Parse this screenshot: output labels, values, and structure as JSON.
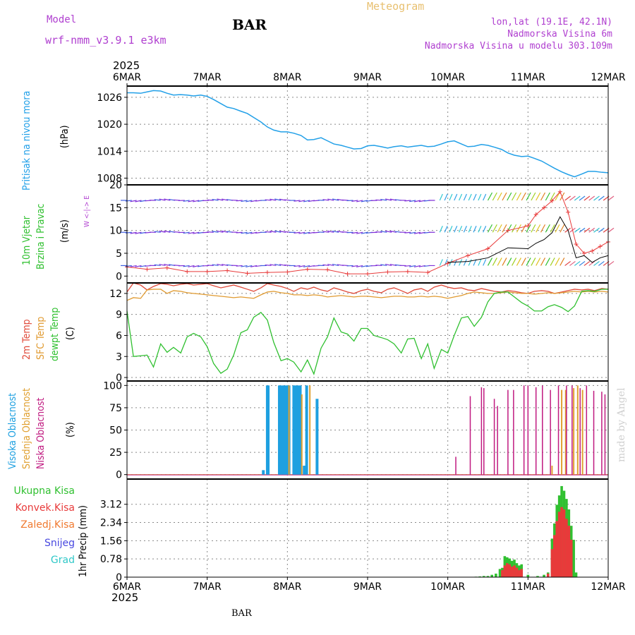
{
  "header": {
    "model_label": "Model",
    "model_name": "wrf-nmm_v3.9.1  e3km",
    "station": "BAR",
    "meteogram": "Meteogram",
    "lonlat": "lon,lat (19.1E, 42.1N)",
    "altitude": "Nadmorska Visina 6m",
    "model_altitude": "Nadmorska Visina u modelu 303.109m",
    "year": "2025",
    "footer_station": "BAR",
    "watermark": "made by Angel"
  },
  "colors": {
    "pressure": "#22a0e8",
    "wind_speed": "#000000",
    "gust": "#e83a3a",
    "temp2m": "#e04a3a",
    "sfc_temp": "#e09a30",
    "dewpt": "#30c030",
    "high_cloud": "#1ea0e0",
    "mid_cloud": "#e0a030",
    "low_cloud": "#c01a80",
    "total_precip": "#30c030",
    "conv_precip": "#e83a3a",
    "frz_precip": "#f07a30",
    "snow": "#4848e0",
    "hail": "#30c8c8",
    "header_purple": "#b040d0",
    "meteogram_gold": "#e8c070"
  },
  "chart_data": [
    {
      "type": "line",
      "panel": "pressure",
      "title": "Pritisak na nivou mora",
      "ylabel": "(hPa)",
      "xlim": [
        0,
        6
      ],
      "ylim": [
        1006.5,
        1028.5
      ],
      "yticks": [
        1008,
        1014,
        1020,
        1026
      ],
      "x": [
        0,
        0.08,
        0.17,
        0.25,
        0.33,
        0.42,
        0.5,
        0.58,
        0.67,
        0.75,
        0.83,
        0.92,
        1.0,
        1.08,
        1.17,
        1.25,
        1.33,
        1.42,
        1.5,
        1.58,
        1.67,
        1.75,
        1.83,
        1.92,
        2.0,
        2.08,
        2.17,
        2.25,
        2.33,
        2.42,
        2.5,
        2.58,
        2.67,
        2.75,
        2.83,
        2.92,
        3.0,
        3.08,
        3.17,
        3.25,
        3.33,
        3.42,
        3.5,
        3.58,
        3.67,
        3.75,
        3.83,
        3.92,
        4.0,
        4.08,
        4.17,
        4.25,
        4.33,
        4.42,
        4.5,
        4.58,
        4.67,
        4.75,
        4.83,
        4.92,
        5.0,
        5.08,
        5.17,
        5.25,
        5.33,
        5.42,
        5.5,
        5.58,
        5.67,
        5.75,
        5.83,
        5.92,
        6.0
      ],
      "series": [
        {
          "name": "Pritisak",
          "values": [
            1027,
            1027,
            1026.9,
            1027.2,
            1027.5,
            1027.4,
            1026.9,
            1026.5,
            1026.6,
            1026.5,
            1026.3,
            1026.5,
            1026.2,
            1025.5,
            1024.6,
            1023.8,
            1023.5,
            1022.9,
            1022.4,
            1021.5,
            1020.5,
            1019.4,
            1018.7,
            1018.3,
            1018.3,
            1018.0,
            1017.5,
            1016.5,
            1016.6,
            1017.0,
            1016.3,
            1015.6,
            1015.3,
            1014.9,
            1014.5,
            1014.6,
            1015.2,
            1015.3,
            1015.0,
            1014.7,
            1015.0,
            1015.2,
            1014.9,
            1015.1,
            1015.3,
            1015.0,
            1015.1,
            1015.6,
            1016.1,
            1016.3,
            1015.6,
            1015.0,
            1015.1,
            1015.5,
            1015.3,
            1014.9,
            1014.4,
            1013.6,
            1013.1,
            1012.8,
            1012.9,
            1012.4,
            1011.8,
            1011.0,
            1010.2,
            1009.4,
            1008.8,
            1008.3,
            1008.9,
            1009.5,
            1009.5,
            1009.3,
            1009.2
          ]
        }
      ]
    },
    {
      "type": "line",
      "panel": "wind",
      "title": "10m Vjetar",
      "title2": "Brzina i Pravac",
      "ylabel": "(m/s)",
      "compass": "W  <-|->  E",
      "xlim": [
        0,
        6
      ],
      "ylim": [
        -1.5,
        20
      ],
      "yticks": [
        0,
        5,
        10,
        15,
        20
      ],
      "x": [
        0,
        0.25,
        0.5,
        0.75,
        1.0,
        1.25,
        1.5,
        1.75,
        2.0,
        2.25,
        2.5,
        2.75,
        3.0,
        3.25,
        3.5,
        3.75,
        4.0,
        4.25,
        4.5,
        4.75,
        5.0,
        5.1,
        5.2,
        5.3,
        5.4,
        5.5,
        5.6,
        5.7,
        5.8,
        5.9,
        6.0
      ],
      "series": [
        {
          "name": "Brzina",
          "values": [
            null,
            null,
            null,
            null,
            null,
            null,
            null,
            null,
            null,
            null,
            null,
            null,
            null,
            null,
            null,
            null,
            3.0,
            3.2,
            4.0,
            6.2,
            6.0,
            7.2,
            8.0,
            9.5,
            13.0,
            10.0,
            4.0,
            4.5,
            3.0,
            4.0,
            4.5
          ]
        },
        {
          "name": "Udari",
          "values": [
            2.0,
            1.5,
            1.8,
            1.0,
            1.0,
            1.2,
            0.6,
            0.8,
            0.9,
            1.5,
            1.4,
            0.5,
            0.5,
            0.9,
            1.0,
            0.8,
            2.8,
            4.5,
            6.0,
            10.0,
            11.0,
            13.5,
            15.0,
            16.5,
            18.5,
            14.0,
            7.0,
            5.0,
            5.5,
            6.5,
            7.5
          ]
        }
      ],
      "arrow_rows": [
        2.3,
        9.6,
        16.6
      ]
    },
    {
      "type": "line",
      "panel": "temperature",
      "titles": [
        "2m Temp",
        "SFC Temp",
        "dewpt Temp"
      ],
      "ylabel": "(C)",
      "xlim": [
        0,
        6
      ],
      "ylim": [
        -0.5,
        13.5
      ],
      "yticks": [
        0,
        3,
        6,
        9,
        12
      ],
      "x": [
        0,
        0.08,
        0.17,
        0.25,
        0.33,
        0.42,
        0.5,
        0.58,
        0.67,
        0.75,
        0.83,
        0.92,
        1.0,
        1.08,
        1.17,
        1.25,
        1.33,
        1.42,
        1.5,
        1.58,
        1.67,
        1.75,
        1.83,
        1.92,
        2.0,
        2.08,
        2.17,
        2.25,
        2.33,
        2.42,
        2.5,
        2.58,
        2.67,
        2.75,
        2.83,
        2.92,
        3.0,
        3.08,
        3.17,
        3.25,
        3.33,
        3.42,
        3.5,
        3.58,
        3.67,
        3.75,
        3.83,
        3.92,
        4.0,
        4.08,
        4.17,
        4.25,
        4.33,
        4.42,
        4.5,
        4.58,
        4.67,
        4.75,
        4.83,
        4.92,
        5.0,
        5.08,
        5.17,
        5.25,
        5.33,
        5.42,
        5.5,
        5.58,
        5.67,
        5.75,
        5.83,
        5.92,
        6.0
      ],
      "series": [
        {
          "name": "2m Temp",
          "values": [
            12.2,
            13.5,
            13.2,
            12.5,
            13.0,
            13.4,
            13.3,
            13.1,
            13.3,
            13.4,
            13.2,
            13.3,
            13.4,
            13.1,
            12.8,
            13.0,
            13.2,
            12.9,
            12.6,
            12.3,
            12.8,
            13.4,
            13.2,
            13.0,
            12.7,
            12.3,
            12.8,
            12.6,
            12.9,
            12.5,
            12.3,
            12.8,
            12.5,
            12.2,
            12.0,
            12.4,
            12.6,
            12.3,
            12.1,
            12.6,
            12.8,
            12.4,
            12.0,
            12.5,
            12.7,
            12.3,
            12.9,
            13.2,
            12.9,
            12.7,
            12.8,
            12.5,
            12.4,
            12.7,
            12.5,
            12.3,
            12.2,
            12.4,
            12.3,
            12.1,
            12.0,
            12.3,
            12.4,
            12.3,
            12.0,
            12.2,
            12.4,
            12.6,
            12.5,
            12.6,
            12.4,
            12.7,
            12.6
          ]
        },
        {
          "name": "SFC Temp",
          "values": [
            11.0,
            11.4,
            11.3,
            12.5,
            12.6,
            12.6,
            12.0,
            12.4,
            12.3,
            12.1,
            12.0,
            11.9,
            11.8,
            11.7,
            11.6,
            11.5,
            11.4,
            11.5,
            11.4,
            11.3,
            11.8,
            12.2,
            12.3,
            12.1,
            12.0,
            11.8,
            11.8,
            11.7,
            11.8,
            11.7,
            11.5,
            11.6,
            11.7,
            11.6,
            11.5,
            11.6,
            11.6,
            11.5,
            11.4,
            11.5,
            11.6,
            11.6,
            11.5,
            11.5,
            11.6,
            11.5,
            11.6,
            11.5,
            11.3,
            11.5,
            11.7,
            12.0,
            12.2,
            12.1,
            12.0,
            12.0,
            12.1,
            12.2,
            12.1,
            12.0,
            12.0,
            11.9,
            12.0,
            12.1,
            12.0,
            12.1,
            12.2,
            12.3,
            12.2,
            12.3,
            12.2,
            12.3,
            12.2
          ]
        },
        {
          "name": "dewpt Temp",
          "values": [
            9.5,
            3.0,
            3.1,
            3.2,
            1.5,
            4.8,
            3.6,
            4.3,
            3.5,
            5.8,
            6.3,
            5.8,
            4.4,
            2.0,
            0.6,
            1.2,
            3.2,
            6.4,
            6.8,
            8.6,
            9.3,
            8.2,
            5.0,
            2.4,
            2.7,
            2.2,
            0.8,
            2.5,
            0.5,
            4.2,
            5.8,
            8.5,
            6.5,
            6.2,
            5.2,
            7.0,
            7.0,
            6.0,
            5.7,
            5.4,
            4.8,
            3.5,
            5.5,
            5.6,
            2.7,
            4.8,
            1.3,
            4.0,
            3.5,
            6.0,
            8.5,
            8.7,
            7.3,
            8.6,
            10.8,
            12.0,
            12.2,
            12.2,
            11.5,
            10.7,
            10.2,
            9.5,
            9.5,
            10.1,
            10.4,
            10.0,
            9.4,
            10.2,
            12.3,
            12.4,
            12.3,
            12.6,
            12.6
          ]
        }
      ]
    },
    {
      "type": "bar",
      "panel": "cloud",
      "titles": [
        "Visoka Oblacnost",
        "Srednja Oblacnost",
        "Niska Oblacnost"
      ],
      "ylabel": "(%)",
      "xlim": [
        0,
        6
      ],
      "ylim": [
        -5,
        105
      ],
      "yticks": [
        0,
        25,
        50,
        75,
        100
      ],
      "series": [
        {
          "name": "Visoka Oblacnost",
          "x": [
            1.7,
            1.75,
            1.76,
            1.9,
            1.92,
            1.95,
            1.97,
            2.0,
            2.02,
            2.08,
            2.1,
            2.13,
            2.16,
            2.21,
            2.24,
            2.37
          ],
          "values": [
            5,
            100,
            100,
            100,
            100,
            100,
            100,
            100,
            100,
            100,
            100,
            100,
            100,
            10,
            100,
            85
          ]
        },
        {
          "name": "Srednja Oblacnost",
          "x": [
            2.02,
            2.18,
            2.28,
            5.3,
            5.42,
            5.47,
            5.57,
            5.62,
            5.68
          ],
          "values": [
            100,
            90,
            100,
            10,
            95,
            95,
            97,
            100,
            95
          ]
        },
        {
          "name": "Niska Oblacnost",
          "x": [
            4.1,
            4.28,
            4.42,
            4.45,
            4.58,
            4.62,
            4.75,
            4.82,
            4.95,
            5.0,
            5.1,
            5.18,
            5.28,
            5.38,
            5.48,
            5.55,
            5.65,
            5.73,
            5.82,
            5.92,
            5.96
          ],
          "values": [
            20,
            88,
            98,
            97,
            85,
            77,
            95,
            95,
            100,
            100,
            98,
            100,
            95,
            100,
            100,
            100,
            97,
            100,
            94,
            93,
            90
          ]
        }
      ]
    },
    {
      "type": "bar",
      "panel": "precip",
      "ylabel": "1hr Precip (mm)",
      "legend": [
        "Ukupna Kisa",
        "Konvek.Kisa",
        "Zaledj.Kisa",
        "Snijeg",
        "Grad"
      ],
      "xlim": [
        0,
        6
      ],
      "ylim": [
        0,
        4.2
      ],
      "yticks": [
        0,
        0.78,
        1.56,
        2.34,
        3.12
      ],
      "ytick_labels": [
        "0",
        "0.78",
        "1.56",
        "2.34",
        "3.12"
      ],
      "series": [
        {
          "name": "Ukupna Kisa",
          "x": [
            4.35,
            4.4,
            4.45,
            4.5,
            4.55,
            4.6,
            4.65,
            4.68,
            4.71,
            4.74,
            4.77,
            4.8,
            4.83,
            4.86,
            4.89,
            4.92,
            5.0,
            5.12,
            5.2,
            5.25,
            5.3,
            5.33,
            5.36,
            5.39,
            5.42,
            5.45,
            5.48,
            5.51,
            5.54,
            5.57,
            5.6
          ],
          "values": [
            0.02,
            0.03,
            0.05,
            0.05,
            0.1,
            0.15,
            0.35,
            0.4,
            0.9,
            0.85,
            0.8,
            0.7,
            0.75,
            0.6,
            0.5,
            0.55,
            0.1,
            0.05,
            0.1,
            0.2,
            1.65,
            2.3,
            3.1,
            3.5,
            3.9,
            3.7,
            3.35,
            2.9,
            2.2,
            1.6,
            0.2
          ]
        },
        {
          "name": "Konvek.Kisa",
          "x": [
            4.68,
            4.71,
            4.74,
            4.77,
            4.8,
            4.83,
            4.86,
            4.89,
            4.92,
            5.25,
            5.3,
            5.33,
            5.36,
            5.39,
            5.42,
            5.45,
            5.48,
            5.51,
            5.54
          ],
          "values": [
            0.3,
            0.5,
            0.6,
            0.55,
            0.45,
            0.5,
            0.4,
            0.3,
            0.35,
            0.15,
            1.2,
            1.8,
            2.4,
            2.8,
            3.0,
            2.9,
            2.5,
            2.2,
            1.6
          ]
        }
      ]
    }
  ],
  "xaxis": {
    "ticks": [
      0,
      1,
      2,
      3,
      4,
      5,
      6
    ],
    "labels": [
      "6MAR",
      "7MAR",
      "8MAR",
      "9MAR",
      "10MAR",
      "11MAR",
      "12MAR"
    ]
  }
}
